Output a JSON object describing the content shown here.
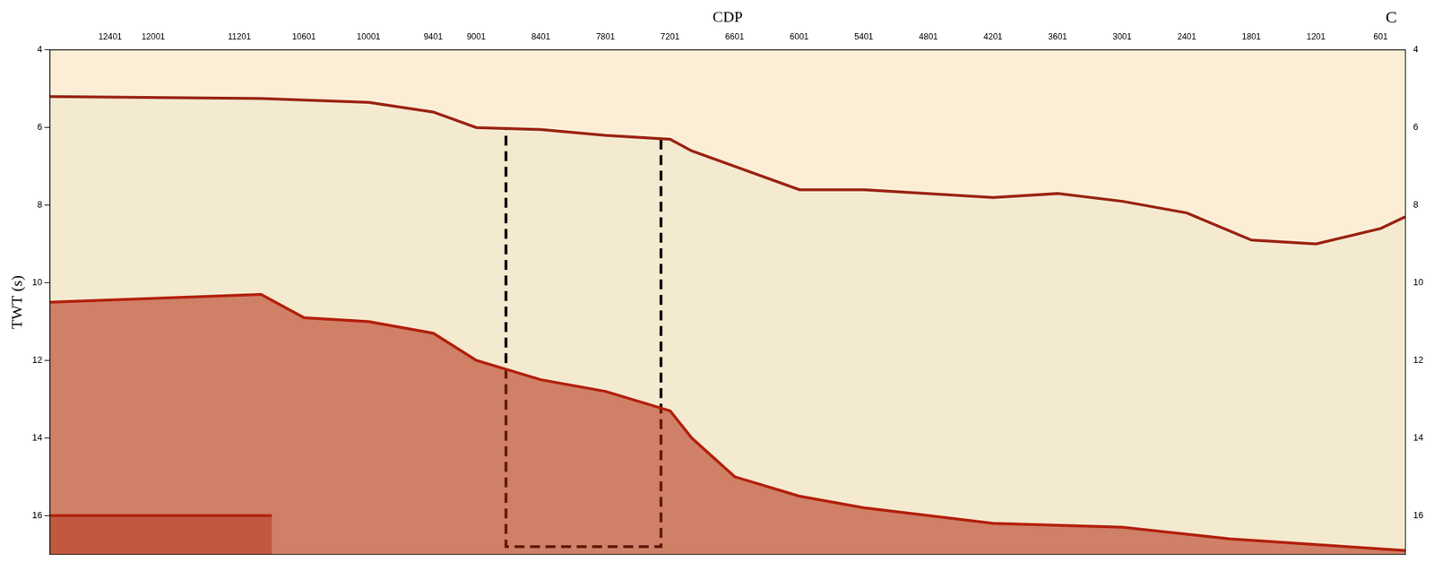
{
  "chart_data": {
    "type": "line",
    "x_label": "CDP",
    "y_label": "TWT (s)",
    "annotations": [
      "C"
    ],
    "xlim": [
      12960,
      370
    ],
    "xticks": [
      12401,
      12001,
      11201,
      10601,
      10001,
      9401,
      9001,
      8401,
      7801,
      7201,
      6601,
      6001,
      5401,
      4801,
      4201,
      3601,
      3001,
      2401,
      1801,
      1201,
      601
    ],
    "ylim": [
      17,
      4
    ],
    "yticks": [
      4,
      6,
      8,
      10,
      12,
      14,
      16
    ],
    "y2lim": [
      17,
      4
    ],
    "y2ticks": [
      4,
      6,
      8,
      10,
      12,
      14,
      16
    ],
    "grid": true,
    "series": [
      {
        "color": "#9b2412",
        "x": [
          12960,
          11000,
          10000,
          9400,
          9000,
          8400,
          7800,
          7200,
          7000,
          6600,
          6000,
          5400,
          4800,
          4200,
          3600,
          3000,
          2400,
          1800,
          1200,
          600,
          372
        ],
        "values": [
          5.2,
          5.25,
          5.35,
          5.6,
          6.0,
          6.05,
          6.2,
          6.3,
          6.6,
          7.0,
          7.6,
          7.6,
          7.7,
          7.8,
          7.7,
          7.9,
          8.2,
          8.9,
          9.0,
          8.6,
          8.3
        ]
      },
      {
        "color": "#b3200c",
        "x": [
          12960,
          11000,
          10600,
          10000,
          9400,
          9000,
          8400,
          7800,
          7200,
          7000,
          6600,
          6000,
          5400,
          4200,
          3000,
          2000,
          372
        ],
        "values": [
          10.5,
          10.3,
          10.9,
          11.0,
          11.3,
          12.0,
          12.5,
          12.8,
          13.3,
          14.0,
          15.0,
          15.5,
          15.8,
          16.2,
          16.3,
          16.6,
          16.9
        ]
      },
      {
        "color": "#b3200c",
        "x": [
          12960,
          10900
        ],
        "values": [
          16.0,
          16.0
        ]
      }
    ],
    "box": {
      "x": [
        8725,
        7285
      ],
      "y": [
        5.9,
        16.8
      ],
      "line_style": "dashed"
    }
  }
}
